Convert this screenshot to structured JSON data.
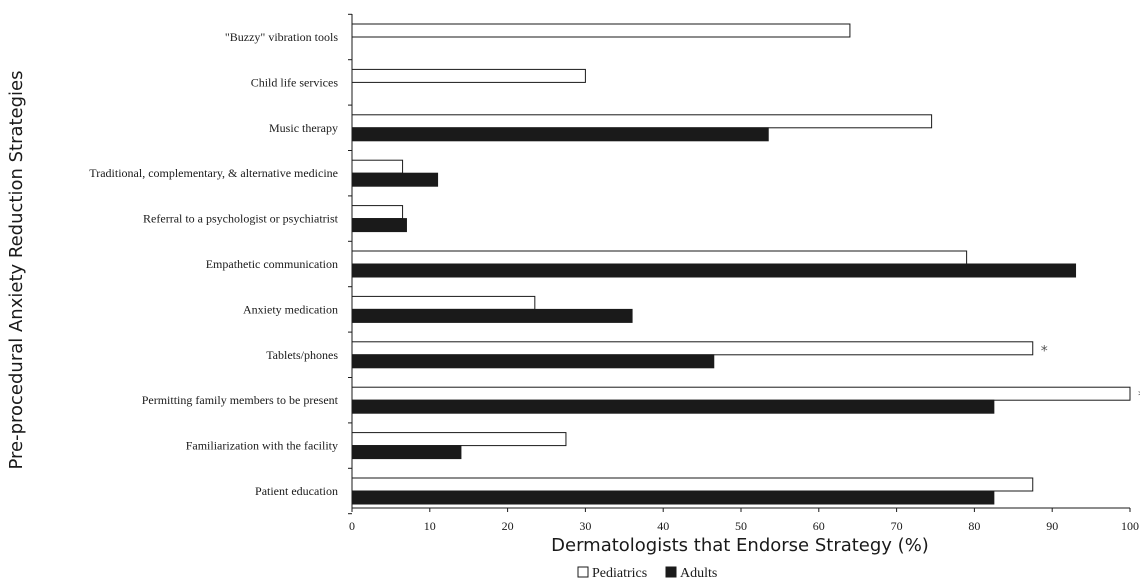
{
  "chart_data": {
    "type": "bar",
    "orientation": "horizontal",
    "title": "",
    "xlabel": "Dermatologists that Endorse Strategy (%)",
    "ylabel": "Pre-procedural Anxiety Reduction Strategies",
    "xlim": [
      0,
      100
    ],
    "x_ticks": [
      "0",
      "10",
      "20",
      "30",
      "40",
      "50",
      "60",
      "70",
      "80",
      "90",
      "100"
    ],
    "categories": [
      "\"Buzzy\" vibration tools",
      "Child life services",
      "Music therapy",
      "Traditional, complementary, & alternative medicine",
      "Referral to a psychologist or psychiatrist",
      "Empathetic communication",
      "Anxiety medication",
      "Tablets/phones",
      "Permitting family members to be present",
      "Familiarization with the facility",
      "Patient education"
    ],
    "series": [
      {
        "name": "Pediatrics",
        "color": "#ffffff",
        "values": [
          64,
          30,
          74.5,
          6.5,
          6.5,
          79,
          23.5,
          87.5,
          100,
          27.5,
          87.5
        ]
      },
      {
        "name": "Adults",
        "color": "#1a1a1a",
        "values": [
          null,
          null,
          53.5,
          11,
          7,
          93,
          36,
          46.5,
          82.5,
          14,
          82.5
        ]
      }
    ],
    "annotations": [
      {
        "category": "Tablets/phones",
        "series": "Pediatrics",
        "text": "*"
      },
      {
        "category": "Permitting family members to be present",
        "series": "Pediatrics",
        "text": "*"
      }
    ],
    "legend": {
      "position": "bottom",
      "items": [
        "Pediatrics",
        "Adults"
      ]
    },
    "grid": false
  }
}
